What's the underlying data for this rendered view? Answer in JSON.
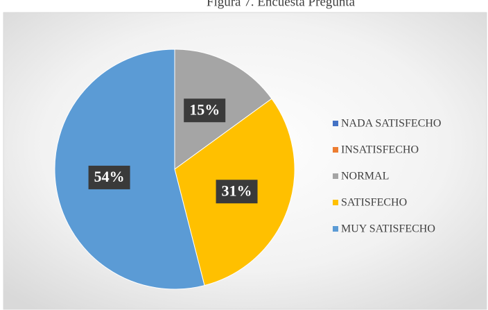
{
  "chart_data": {
    "type": "pie",
    "title": "Figura 7. Encuesta Pregunta",
    "categories": [
      "NADA SATISFECHO",
      "INSATISFECHO",
      "NORMAL",
      "SATISFECHO",
      "MUY SATISFECHO"
    ],
    "values": [
      0,
      0,
      15,
      31,
      54
    ],
    "value_labels": [
      null,
      null,
      "15%",
      "31%",
      "54%"
    ],
    "colors": [
      "#4472c4",
      "#ed7d31",
      "#a5a5a5",
      "#ffc000",
      "#5b9bd5"
    ],
    "legend": "right"
  }
}
